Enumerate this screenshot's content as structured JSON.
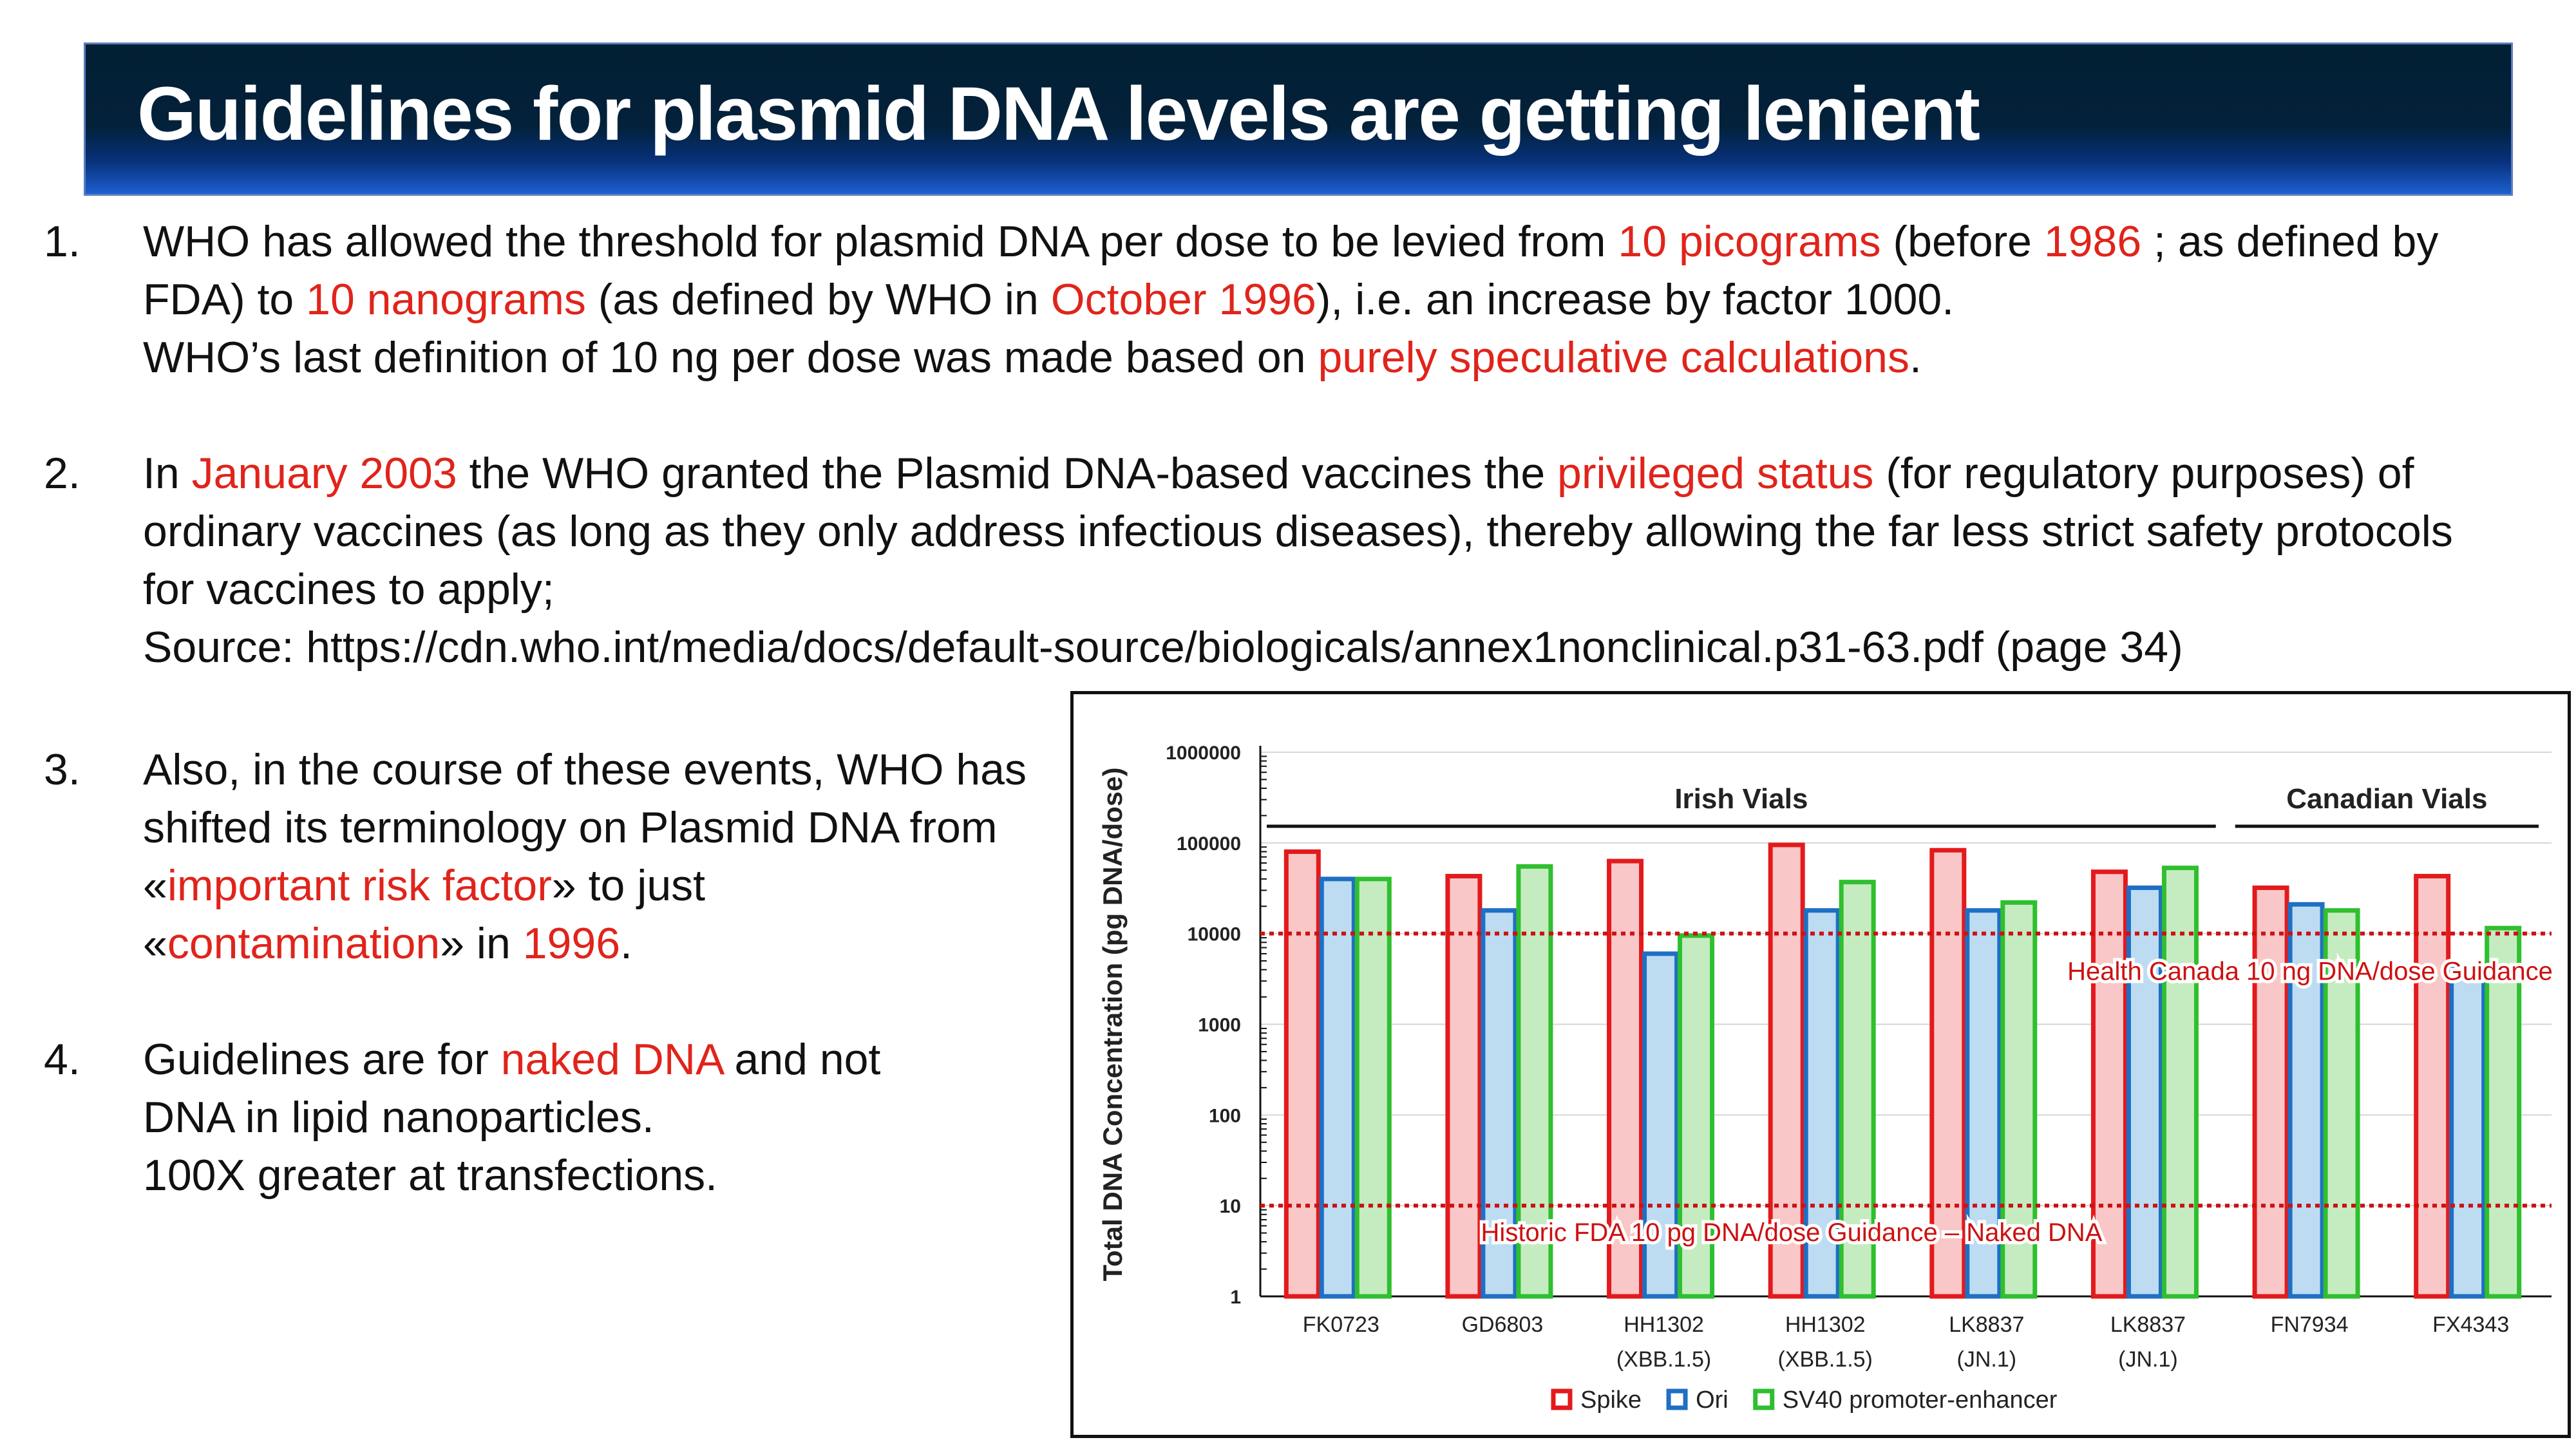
{
  "title": "Guidelines for plasmid DNA levels are getting lenient",
  "items": [
    {
      "number": "1.",
      "lines": [
        [
          {
            "t": "WHO has allowed the threshold for plasmid DNA per dose to be levied from "
          },
          {
            "t": "10 picograms",
            "red": true
          },
          {
            "t": " (before "
          },
          {
            "t": "1986",
            "red": true
          },
          {
            "t": " ; as defined by"
          }
        ],
        [
          {
            "t": "FDA) to "
          },
          {
            "t": "10 nanograms",
            "red": true
          },
          {
            "t": " (as defined by WHO in "
          },
          {
            "t": "October 1996",
            "red": true
          },
          {
            "t": "), i.e. an increase by factor 1000."
          }
        ],
        [
          {
            "t": "WHO’s last definition of 10 ng per dose was made based on "
          },
          {
            "t": "purely speculative calculations",
            "red": true
          },
          {
            "t": "."
          }
        ]
      ]
    },
    {
      "number": "2.",
      "lines": [
        [
          {
            "t": "In "
          },
          {
            "t": "January 2003",
            "red": true
          },
          {
            "t": " the WHO granted the Plasmid DNA-based vaccines the "
          },
          {
            "t": "privileged status",
            "red": true
          },
          {
            "t": " (for regulatory purposes) of"
          }
        ],
        [
          {
            "t": "ordinary vaccines (as long as they only address infectious diseases), thereby allowing the far less strict safety protocols"
          }
        ],
        [
          {
            "t": "for vaccines to apply;"
          }
        ],
        [
          {
            "t": "Source: https://cdn.who.int/media/docs/default-source/biologicals/annex1nonclinical.p31-63.pdf  (page 34)"
          }
        ]
      ]
    },
    {
      "number": "3.",
      "lines": [
        [
          {
            "t": "Also, in the course of these events, WHO has"
          }
        ],
        [
          {
            "t": "shifted its terminology on Plasmid DNA from"
          }
        ],
        [
          {
            "t": " «"
          },
          {
            "t": "important risk factor",
            "red": true
          },
          {
            "t": "» to just"
          }
        ],
        [
          {
            "t": "«"
          },
          {
            "t": "contamination",
            "red": true
          },
          {
            "t": "» in "
          },
          {
            "t": "1996",
            "red": true
          },
          {
            "t": "."
          }
        ]
      ]
    },
    {
      "number": "4.",
      "lines": [
        [
          {
            "t": "Guidelines are for "
          },
          {
            "t": "naked DNA",
            "red": true
          },
          {
            "t": " and not"
          }
        ],
        [
          {
            "t": "DNA in lipid nanoparticles."
          }
        ],
        [
          {
            "t": "100X greater at transfections."
          }
        ]
      ]
    }
  ],
  "chart_data": {
    "type": "bar",
    "y_scale": "log",
    "ylim": [
      1,
      1000000
    ],
    "y_ticks": [
      "1",
      "10",
      "100",
      "1000",
      "10000",
      "100000",
      "1000000"
    ],
    "ylabel": "Total DNA Concentration (pg DNA/dose)",
    "grid": true,
    "legend_position": "bottom",
    "categories": [
      [
        "FK0723"
      ],
      [
        "GD6803"
      ],
      [
        "HH1302",
        "(XBB.1.5)"
      ],
      [
        "HH1302",
        "(XBB.1.5)"
      ],
      [
        "LK8837",
        "(JN.1)"
      ],
      [
        "LK8837",
        "(JN.1)"
      ],
      [
        "FN7934"
      ],
      [
        "FX4343"
      ]
    ],
    "series": [
      {
        "name": "Spike",
        "color": "#e31a1c",
        "fill": "#f9c7c7",
        "values": [
          80000,
          43000,
          63000,
          95000,
          83000,
          48000,
          32000,
          43000
        ]
      },
      {
        "name": "Ori",
        "color": "#1f6fc4",
        "fill": "#bddcf2",
        "values": [
          40000,
          18000,
          6000,
          18000,
          18000,
          32000,
          21000,
          4200
        ]
      },
      {
        "name": "SV40 promoter-enhancer",
        "color": "#2fbf2f",
        "fill": "#c5ecc0",
        "values": [
          40000,
          55000,
          9500,
          37000,
          22000,
          53000,
          18000,
          11500
        ]
      }
    ],
    "groups": [
      {
        "label": "Irish Vials",
        "from": 0,
        "to": 5
      },
      {
        "label": "Canadian Vials",
        "from": 6,
        "to": 7
      }
    ],
    "reference_lines": [
      {
        "value": 10000,
        "label": "Health Canada 10 ng DNA/dose Guidance",
        "color": "#cc1111"
      },
      {
        "value": 10,
        "label": "Historic FDA 10 pg DNA/dose Guidance – Naked DNA",
        "color": "#cc1111"
      }
    ]
  }
}
